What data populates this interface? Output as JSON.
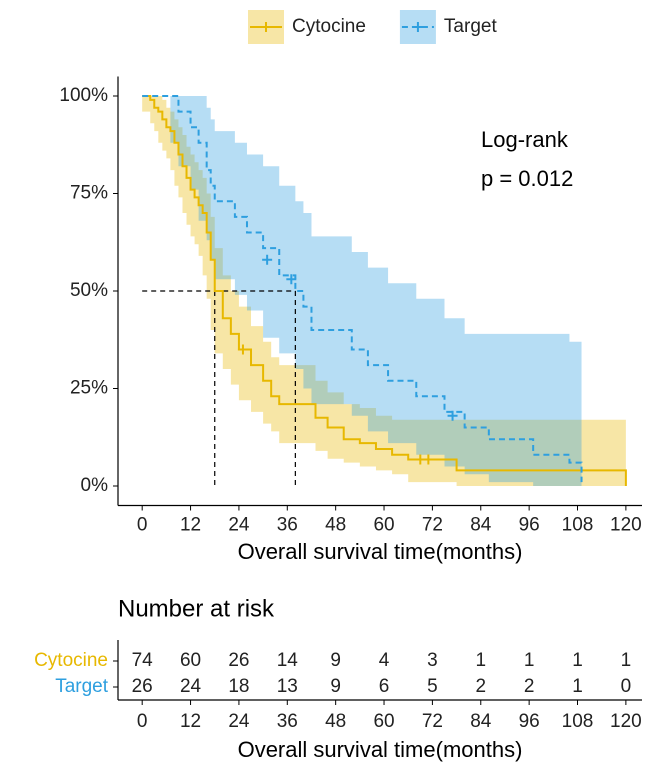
{
  "chart_data": {
    "type": "survival",
    "legend": "top",
    "annotation": [
      "Log-rank",
      "p = 0.012"
    ],
    "xlabel": "Overall survival time(months)",
    "xlim": [
      -6,
      124
    ],
    "xticks": [
      0,
      12,
      24,
      36,
      48,
      60,
      72,
      84,
      96,
      108,
      120
    ],
    "ylim": [
      -5,
      105
    ],
    "yticks": [
      {
        "value": 0,
        "label": "0%"
      },
      {
        "value": 25,
        "label": "25%"
      },
      {
        "value": 50,
        "label": "50%"
      },
      {
        "value": 75,
        "label": "75%"
      },
      {
        "value": 100,
        "label": "100%"
      }
    ],
    "median_y": 50,
    "median_x": [
      18,
      38
    ],
    "series": [
      {
        "name": "Cytocine",
        "color": "#E7B800",
        "x": [
          0,
          2,
          3,
          4,
          5,
          6,
          7,
          8,
          9,
          10,
          11,
          12,
          13,
          14,
          15,
          16,
          17,
          18,
          20,
          22,
          24,
          27,
          30,
          32,
          34,
          43,
          46,
          50,
          54,
          58,
          62,
          66,
          78,
          120
        ],
        "values": [
          100,
          99,
          97,
          96,
          94,
          92,
          91,
          88,
          85,
          82,
          79,
          76,
          74,
          72,
          70,
          65,
          58,
          50,
          43,
          39,
          35,
          31,
          27,
          23,
          21,
          17.5,
          15,
          12,
          11,
          9.5,
          8,
          6.8,
          4,
          0
        ],
        "upper": [
          100,
          100,
          100,
          100,
          99,
          97,
          96,
          94,
          92,
          90,
          87,
          85,
          83,
          81,
          79,
          75,
          69,
          61,
          54,
          50,
          46,
          41,
          37,
          33,
          31,
          27,
          24,
          21,
          20,
          18,
          17,
          17,
          17,
          17
        ],
        "lower": [
          100,
          96,
          93,
          91,
          88,
          86,
          84,
          81,
          77,
          74,
          70,
          67,
          64,
          62,
          59,
          54,
          48,
          40,
          34,
          30,
          26,
          22,
          19,
          16,
          14,
          11,
          9,
          7,
          6,
          5,
          4,
          3,
          1,
          0
        ],
        "censor_x": [
          25,
          69,
          71
        ],
        "censor_y": [
          35,
          6.8,
          6.8
        ]
      },
      {
        "name": "Target",
        "color": "#2E9FDF",
        "x": [
          0,
          7,
          9,
          12,
          14,
          16,
          17,
          18,
          23,
          26,
          30,
          34,
          38,
          40,
          42,
          52,
          56,
          61,
          68,
          75,
          80,
          86,
          97,
          106,
          109
        ],
        "values": [
          100,
          100,
          96,
          92,
          88,
          81,
          77,
          73,
          69,
          65,
          61,
          54,
          50,
          46,
          40,
          35,
          31,
          27,
          23,
          19,
          15,
          12,
          8,
          6,
          1
        ],
        "upper": [
          100,
          100,
          100,
          100,
          100,
          97,
          94,
          91,
          88,
          85,
          82,
          77,
          73,
          70,
          64,
          60,
          56,
          52,
          48,
          43,
          39,
          39,
          39,
          37,
          37
        ],
        "lower": [
          100,
          100,
          88,
          82,
          76,
          68,
          63,
          58,
          53,
          49,
          45,
          38,
          34,
          30,
          25,
          21,
          18,
          14,
          11,
          8,
          5,
          3,
          1,
          0,
          0
        ],
        "censor_x": [
          31,
          37,
          77
        ],
        "censor_y": [
          58,
          53,
          18
        ]
      }
    ],
    "risk_table": {
      "title": "Number at risk",
      "xlabel": "Overall survival time(months)",
      "rows": [
        {
          "name": "Cytocine",
          "color": "#E7B800",
          "values": [
            74,
            60,
            26,
            14,
            9,
            4,
            3,
            1,
            1,
            1,
            1
          ]
        },
        {
          "name": "Target",
          "color": "#2E9FDF",
          "values": [
            26,
            24,
            18,
            13,
            9,
            6,
            5,
            2,
            2,
            1,
            0
          ]
        }
      ]
    }
  }
}
